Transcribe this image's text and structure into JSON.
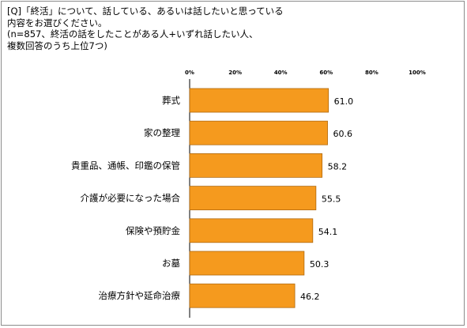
{
  "question": {
    "lines": [
      "[Q]「終活」について、話している、あるいは話したいと思っている",
      "内容をお選びください。",
      "(n=857、終活の話をしたことがある人+いずれ話したい人、",
      "複数回答のうち上位7つ)"
    ]
  },
  "chart_data": {
    "type": "bar",
    "orientation": "horizontal",
    "title": "",
    "xlabel": "",
    "ylabel": "",
    "xlim": [
      0,
      100
    ],
    "x_ticks": [
      "0%",
      "20%",
      "40%",
      "60%",
      "80%",
      "100%"
    ],
    "categories": [
      "葬式",
      "家の整理",
      "貴重品、通帳、印鑑の保管",
      "介護が必要になった場合",
      "保険や預貯金",
      "お墓",
      "治療方針や延命治療"
    ],
    "values": [
      61.0,
      60.6,
      58.2,
      55.5,
      54.1,
      50.3,
      46.2
    ],
    "value_labels": [
      "61.0",
      "60.6",
      "58.2",
      "55.5",
      "54.1",
      "50.3",
      "46.2"
    ],
    "bar_color": "#F59A1E",
    "bar_edge_color": "#B06A10",
    "grid": false,
    "legend": "none"
  }
}
